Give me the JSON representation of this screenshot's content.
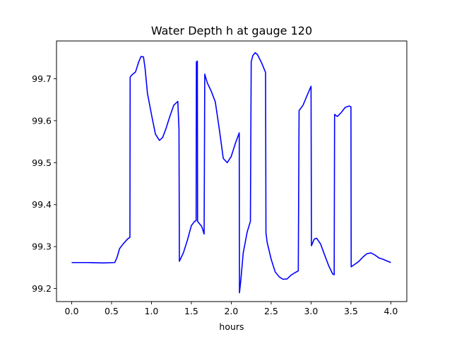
{
  "chart_data": {
    "type": "line",
    "title": "Water Depth h at gauge 120",
    "xlabel": "hours",
    "ylabel": "",
    "xlim": [
      -0.19,
      4.2
    ],
    "ylim": [
      99.169,
      99.79
    ],
    "xticks": [
      0.0,
      0.5,
      1.0,
      1.5,
      2.0,
      2.5,
      3.0,
      3.5,
      4.0
    ],
    "xtick_labels": [
      "0.0",
      "0.5",
      "1.0",
      "1.5",
      "2.0",
      "2.5",
      "3.0",
      "3.5",
      "4.0"
    ],
    "yticks": [
      99.2,
      99.3,
      99.4,
      99.5,
      99.6,
      99.7
    ],
    "ytick_labels": [
      "99.2",
      "99.3",
      "99.4",
      "99.5",
      "99.6",
      "99.7"
    ],
    "grid": false,
    "line_color": "#0000ff",
    "series": [
      {
        "x": [
          0.0,
          0.2,
          0.4,
          0.54,
          0.57,
          0.6,
          0.64,
          0.7,
          0.73,
          0.733,
          0.76,
          0.8,
          0.84,
          0.87,
          0.9,
          0.92,
          0.95,
          1.0,
          1.05,
          1.1,
          1.14,
          1.18,
          1.23,
          1.28,
          1.33,
          1.345,
          1.35,
          1.4,
          1.45,
          1.5,
          1.54,
          1.56,
          1.563,
          1.575,
          1.578,
          1.6,
          1.63,
          1.66,
          1.668,
          1.7,
          1.75,
          1.8,
          1.85,
          1.9,
          1.95,
          2.0,
          2.05,
          2.1,
          2.103,
          2.12,
          2.15,
          2.2,
          2.24,
          2.25,
          2.27,
          2.3,
          2.33,
          2.38,
          2.43,
          2.435,
          2.45,
          2.5,
          2.55,
          2.6,
          2.65,
          2.7,
          2.75,
          2.8,
          2.84,
          2.85,
          2.9,
          2.95,
          3.0,
          3.005,
          3.04,
          3.07,
          3.12,
          3.17,
          3.22,
          3.27,
          3.29,
          3.295,
          3.33,
          3.38,
          3.43,
          3.48,
          3.5,
          3.503,
          3.55,
          3.6,
          3.65,
          3.7,
          3.75,
          3.8,
          3.85,
          3.9,
          3.95,
          4.0
        ],
        "y": [
          99.262,
          99.262,
          99.261,
          99.262,
          99.275,
          99.295,
          99.305,
          99.318,
          99.322,
          99.704,
          99.71,
          99.716,
          99.74,
          99.753,
          99.752,
          99.725,
          99.665,
          99.615,
          99.568,
          99.553,
          99.56,
          99.58,
          99.61,
          99.637,
          99.646,
          99.58,
          99.265,
          99.285,
          99.315,
          99.35,
          99.36,
          99.362,
          99.74,
          99.742,
          99.36,
          99.355,
          99.348,
          99.33,
          99.711,
          99.69,
          99.67,
          99.645,
          99.58,
          99.51,
          99.5,
          99.515,
          99.545,
          99.571,
          99.19,
          99.22,
          99.285,
          99.335,
          99.36,
          99.74,
          99.755,
          99.762,
          99.757,
          99.738,
          99.715,
          99.333,
          99.31,
          99.27,
          99.24,
          99.228,
          99.222,
          99.223,
          99.232,
          99.238,
          99.242,
          99.624,
          99.637,
          99.66,
          99.682,
          99.302,
          99.318,
          99.32,
          99.306,
          99.28,
          99.255,
          99.235,
          99.233,
          99.615,
          99.61,
          99.62,
          99.632,
          99.635,
          99.633,
          99.252,
          99.258,
          99.265,
          99.275,
          99.283,
          99.285,
          99.28,
          99.273,
          99.27,
          99.266,
          99.262
        ]
      }
    ]
  }
}
